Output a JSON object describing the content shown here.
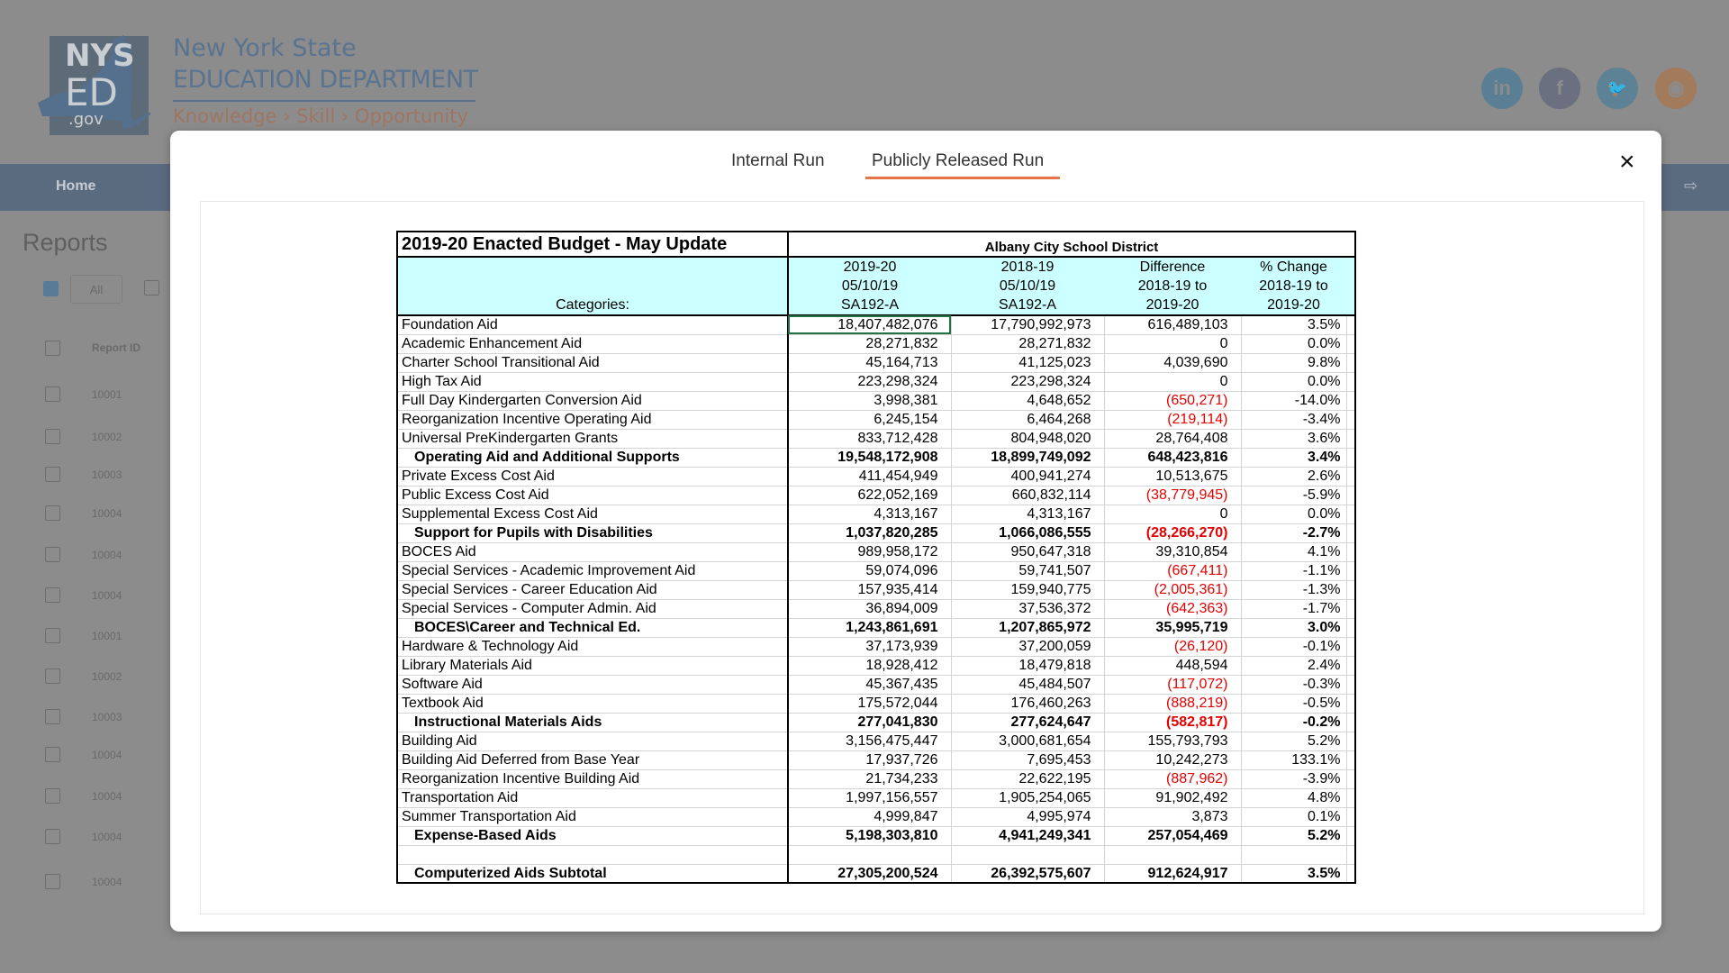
{
  "site": {
    "logo_text": [
      "NYS",
      "ED",
      ".gov"
    ],
    "org_line1": "New York State",
    "org_line2": "EDUCATION DEPARTMENT",
    "tagline": "Knowledge › Skill › Opportunity",
    "social": [
      {
        "icon": "linkedin-icon",
        "glyph": "in",
        "color": "#5a7f94"
      },
      {
        "icon": "facebook-icon",
        "glyph": "f",
        "color": "#6a7080"
      },
      {
        "icon": "twitter-icon",
        "glyph": "🐦",
        "color": "#5e8295"
      },
      {
        "icon": "rss-icon",
        "glyph": "◉",
        "color": "#a27a5c"
      }
    ],
    "nav": {
      "home": "Home",
      "exit_icon": "⇨"
    }
  },
  "reports": {
    "title": "Reports",
    "filter_all": "All",
    "column_header": "Report ID",
    "ids": [
      "10001",
      "10002",
      "10003",
      "10004",
      "10004",
      "10004",
      "10001",
      "10002",
      "10003",
      "10004",
      "10004",
      "10004",
      "10004"
    ]
  },
  "modal": {
    "tabs": [
      {
        "label": "Internal Run",
        "active": false
      },
      {
        "label": "Publicly Released Run",
        "active": true
      }
    ],
    "close_icon": "×",
    "accent": "#e8754a"
  },
  "sheet": {
    "title": "2019-20 Enacted Budget - May Update",
    "district": "Albany City School District",
    "categories_label": "Categories:",
    "headers": [
      [
        "2019-20",
        "05/10/19",
        "SA192-A"
      ],
      [
        "2018-19",
        "05/10/19",
        "SA192-A"
      ],
      [
        "Difference",
        "2018-19 to",
        "2019-20"
      ],
      [
        "% Change",
        "2018-19 to",
        "2019-20"
      ]
    ],
    "rows": [
      {
        "label": "Foundation Aid",
        "v1": "18,407,482,076",
        "v2": "17,790,992,973",
        "diff": "616,489,103",
        "pct": "3.5%"
      },
      {
        "label": "Academic Enhancement Aid",
        "v1": "28,271,832",
        "v2": "28,271,832",
        "diff": "0",
        "pct": "0.0%"
      },
      {
        "label": "Charter School Transitional Aid",
        "v1": "45,164,713",
        "v2": "41,125,023",
        "diff": "4,039,690",
        "pct": "9.8%"
      },
      {
        "label": "High Tax Aid",
        "v1": "223,298,324",
        "v2": "223,298,324",
        "diff": "0",
        "pct": "0.0%"
      },
      {
        "label": "Full Day Kindergarten Conversion Aid",
        "v1": "3,998,381",
        "v2": "4,648,652",
        "diff": "(650,271)",
        "pct": "-14.0%"
      },
      {
        "label": "Reorganization Incentive Operating Aid",
        "v1": "6,245,154",
        "v2": "6,464,268",
        "diff": "(219,114)",
        "pct": "-3.4%"
      },
      {
        "label": "Universal PreKindergarten Grants",
        "v1": "833,712,428",
        "v2": "804,948,020",
        "diff": "28,764,408",
        "pct": "3.6%"
      },
      {
        "label": "Operating Aid and Additional Supports",
        "v1": "19,548,172,908",
        "v2": "18,899,749,092",
        "diff": "648,423,816",
        "pct": "3.4%",
        "bold": true
      },
      {
        "label": "Private Excess Cost Aid",
        "v1": "411,454,949",
        "v2": "400,941,274",
        "diff": "10,513,675",
        "pct": "2.6%"
      },
      {
        "label": "Public Excess Cost Aid",
        "v1": "622,052,169",
        "v2": "660,832,114",
        "diff": "(38,779,945)",
        "pct": "-5.9%"
      },
      {
        "label": "Supplemental Excess Cost Aid",
        "v1": "4,313,167",
        "v2": "4,313,167",
        "diff": "0",
        "pct": "0.0%"
      },
      {
        "label": "Support for Pupils with Disabilities",
        "v1": "1,037,820,285",
        "v2": "1,066,086,555",
        "diff": "(28,266,270)",
        "pct": "-2.7%",
        "bold": true
      },
      {
        "label": "BOCES Aid",
        "v1": "989,958,172",
        "v2": "950,647,318",
        "diff": "39,310,854",
        "pct": "4.1%"
      },
      {
        "label": "Special Services - Academic Improvement Aid",
        "v1": "59,074,096",
        "v2": "59,741,507",
        "diff": "(667,411)",
        "pct": "-1.1%"
      },
      {
        "label": "Special Services - Career Education Aid",
        "v1": "157,935,414",
        "v2": "159,940,775",
        "diff": "(2,005,361)",
        "pct": "-1.3%"
      },
      {
        "label": "Special Services - Computer Admin. Aid",
        "v1": "36,894,009",
        "v2": "37,536,372",
        "diff": "(642,363)",
        "pct": "-1.7%"
      },
      {
        "label": "BOCES\\Career and Technical Ed.",
        "v1": "1,243,861,691",
        "v2": "1,207,865,972",
        "diff": "35,995,719",
        "pct": "3.0%",
        "bold": true
      },
      {
        "label": "Hardware & Technology Aid",
        "v1": "37,173,939",
        "v2": "37,200,059",
        "diff": "(26,120)",
        "pct": "-0.1%"
      },
      {
        "label": "Library Materials Aid",
        "v1": "18,928,412",
        "v2": "18,479,818",
        "diff": "448,594",
        "pct": "2.4%"
      },
      {
        "label": "Software Aid",
        "v1": "45,367,435",
        "v2": "45,484,507",
        "diff": "(117,072)",
        "pct": "-0.3%"
      },
      {
        "label": "Textbook Aid",
        "v1": "175,572,044",
        "v2": "176,460,263",
        "diff": "(888,219)",
        "pct": "-0.5%"
      },
      {
        "label": "Instructional Materials Aids",
        "v1": "277,041,830",
        "v2": "277,624,647",
        "diff": "(582,817)",
        "pct": "-0.2%",
        "bold": true
      },
      {
        "label": "Building Aid",
        "v1": "3,156,475,447",
        "v2": "3,000,681,654",
        "diff": "155,793,793",
        "pct": "5.2%"
      },
      {
        "label": "Building Aid Deferred from Base Year",
        "v1": "17,937,726",
        "v2": "7,695,453",
        "diff": "10,242,273",
        "pct": "133.1%"
      },
      {
        "label": "Reorganization Incentive Building Aid",
        "v1": "21,734,233",
        "v2": "22,622,195",
        "diff": "(887,962)",
        "pct": "-3.9%"
      },
      {
        "label": "Transportation Aid",
        "v1": "1,997,156,557",
        "v2": "1,905,254,065",
        "diff": "91,902,492",
        "pct": "4.8%"
      },
      {
        "label": "Summer Transportation Aid",
        "v1": "4,999,847",
        "v2": "4,995,974",
        "diff": "3,873",
        "pct": "0.1%"
      },
      {
        "label": "Expense-Based Aids",
        "v1": "5,198,303,810",
        "v2": "4,941,249,341",
        "diff": "257,054,469",
        "pct": "5.2%",
        "bold": true
      },
      {
        "label": "",
        "v1": "",
        "v2": "",
        "diff": "",
        "pct": ""
      },
      {
        "label": "Computerized Aids Subtotal",
        "v1": "27,305,200,524",
        "v2": "26,392,575,607",
        "diff": "912,624,917",
        "pct": "3.5%",
        "bold": true,
        "total": true
      }
    ],
    "negative_color": "#e60000",
    "header_bg": "#ccffff"
  }
}
